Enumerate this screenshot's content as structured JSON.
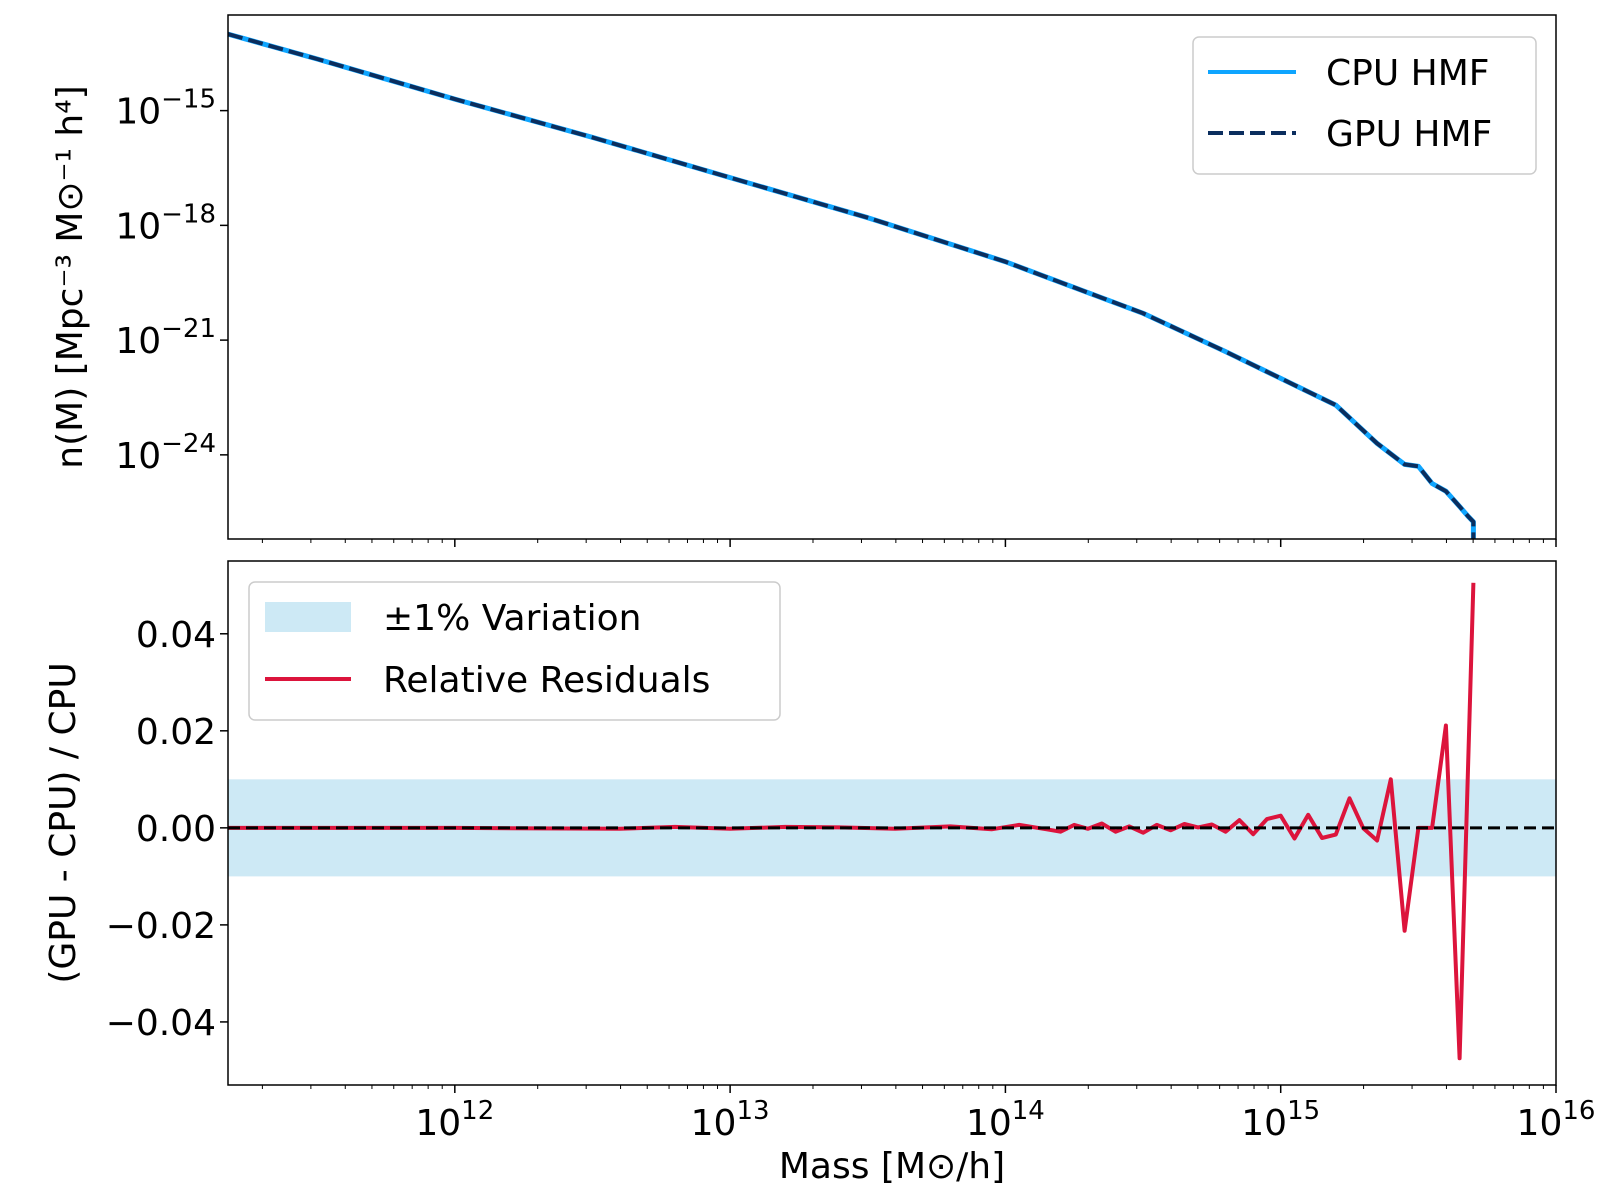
{
  "colors": {
    "cpu": "#0ea5ff",
    "gpu": "#0b2e5e",
    "residual": "#dc143c",
    "band": "#cde9f5",
    "zero": "#000000"
  },
  "chart_data": [
    {
      "type": "line",
      "xscale": "log",
      "yscale": "log",
      "ylabel": "n(M) [Mpc⁻³ M⊙⁻¹ h⁴]",
      "xlim": [
        150000000000.0,
        1e+16
      ],
      "ylim_log10": [
        -26.2,
        -12.5
      ],
      "yticks": [
        {
          "exp": -15,
          "base": "10",
          "sup": "−15"
        },
        {
          "exp": -18,
          "base": "10",
          "sup": "−18"
        },
        {
          "exp": -21,
          "base": "10",
          "sup": "−21"
        },
        {
          "exp": -24,
          "base": "10",
          "sup": "−24"
        }
      ],
      "legend": {
        "position": "top-right",
        "entries": [
          "CPU HMF",
          "GPU HMF"
        ]
      },
      "series": [
        {
          "name": "CPU HMF",
          "style": "solid",
          "log10_x": [
            11.176,
            11.5,
            12.0,
            12.5,
            13.0,
            13.5,
            14.0,
            14.5,
            14.8,
            15.0,
            15.2,
            15.35,
            15.45,
            15.5,
            15.55,
            15.6,
            15.65,
            15.68,
            15.7,
            15.7
          ],
          "log10_y": [
            -13.0,
            -13.65,
            -14.7,
            -15.7,
            -16.75,
            -17.8,
            -18.95,
            -20.3,
            -21.3,
            -22.0,
            -22.7,
            -23.7,
            -24.25,
            -24.3,
            -24.75,
            -24.95,
            -25.35,
            -25.6,
            -25.75,
            -26.2
          ]
        },
        {
          "name": "GPU HMF",
          "style": "dashed",
          "log10_x": [
            11.176,
            11.5,
            12.0,
            12.5,
            13.0,
            13.5,
            14.0,
            14.5,
            14.8,
            15.0,
            15.2,
            15.35,
            15.45,
            15.5,
            15.55,
            15.6,
            15.65,
            15.68,
            15.7,
            15.7
          ],
          "log10_y": [
            -13.0,
            -13.65,
            -14.7,
            -15.7,
            -16.75,
            -17.8,
            -18.95,
            -20.3,
            -21.3,
            -22.0,
            -22.7,
            -23.7,
            -24.25,
            -24.3,
            -24.75,
            -24.95,
            -25.35,
            -25.6,
            -25.75,
            -26.2
          ]
        }
      ]
    },
    {
      "type": "line",
      "xscale": "log",
      "xlabel": "Mass [M⊙/h]",
      "ylabel": "(GPU - CPU) / CPU",
      "xlim": [
        150000000000.0,
        1e+16
      ],
      "ylim": [
        -0.053,
        0.055
      ],
      "xticks": [
        {
          "exp": 12,
          "base": "10",
          "sup": "12"
        },
        {
          "exp": 13,
          "base": "10",
          "sup": "13"
        },
        {
          "exp": 14,
          "base": "10",
          "sup": "14"
        },
        {
          "exp": 15,
          "base": "10",
          "sup": "15"
        },
        {
          "exp": 16,
          "base": "10",
          "sup": "16"
        }
      ],
      "yticks": [
        {
          "value": 0.04,
          "label": "0.04"
        },
        {
          "value": 0.02,
          "label": "0.02"
        },
        {
          "value": 0.0,
          "label": "0.00"
        },
        {
          "value": -0.02,
          "label": "−0.02"
        },
        {
          "value": -0.04,
          "label": "−0.04"
        }
      ],
      "band": {
        "name": "±1% Variation",
        "low": -0.01,
        "high": 0.01
      },
      "zero_line": 0.0,
      "legend": {
        "position": "top-left",
        "entries": [
          "±1% Variation",
          "Relative Residuals"
        ]
      },
      "series": [
        {
          "name": "Relative Residuals",
          "log10_x": [
            11.176,
            12.0,
            12.6,
            12.8,
            13.0,
            13.2,
            13.4,
            13.6,
            13.8,
            13.95,
            14.05,
            14.15,
            14.2,
            14.25,
            14.3,
            14.35,
            14.4,
            14.45,
            14.5,
            14.55,
            14.6,
            14.65,
            14.7,
            14.75,
            14.8,
            14.85,
            14.9,
            14.95,
            15.0,
            15.05,
            15.1,
            15.15,
            15.2,
            15.25,
            15.3,
            15.35,
            15.4,
            15.45,
            15.5,
            15.55,
            15.6,
            15.65,
            15.7
          ],
          "values": [
            0.0,
            0.0,
            -0.0002,
            0.0002,
            -0.0002,
            0.0002,
            0.0001,
            -0.0002,
            0.0003,
            -0.0003,
            0.0006,
            -0.0003,
            -0.0008,
            0.0006,
            -0.0002,
            0.0009,
            -0.0008,
            0.0003,
            -0.001,
            0.0006,
            -0.0005,
            0.0008,
            0.0001,
            0.0007,
            -0.0008,
            0.0016,
            -0.0013,
            0.0018,
            0.0025,
            -0.0022,
            0.0027,
            -0.0021,
            -0.0014,
            0.0061,
            -0.0001,
            -0.0026,
            0.01,
            -0.0212,
            0.0,
            0.0,
            0.0211,
            -0.0475,
            0.0505
          ]
        }
      ]
    }
  ]
}
